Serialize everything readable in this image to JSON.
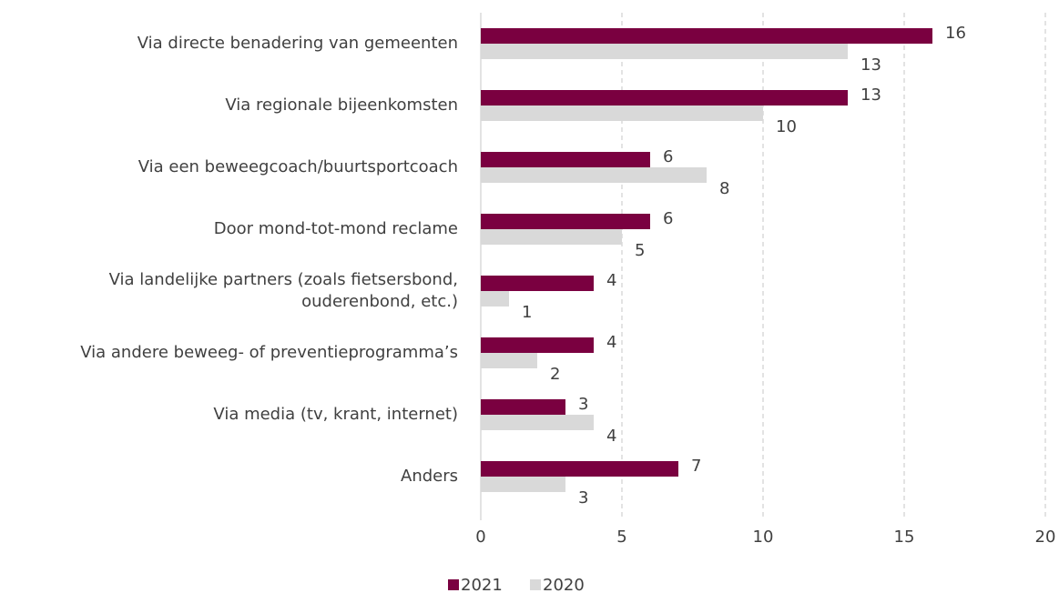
{
  "chart_data": {
    "type": "hbar",
    "categories": [
      "Via directe benadering van gemeenten",
      "Via regionale bijeenkomsten",
      "Via een beweegcoach/buurtsportcoach",
      "Door mond-tot-mond reclame",
      "Via landelijke partners (zoals fietsersbond,\nouderenbond, etc.)",
      "Via andere beweeg- of preventieprogramma’s",
      "Via media (tv, krant, internet)",
      "Anders"
    ],
    "series": [
      {
        "name": "2021",
        "color": "#7a0040",
        "values": [
          16,
          13,
          6,
          6,
          4,
          4,
          3,
          7
        ]
      },
      {
        "name": "2020",
        "color": "#d9d9d9",
        "values": [
          13,
          10,
          8,
          5,
          1,
          2,
          4,
          3
        ]
      }
    ],
    "xlim": [
      0,
      20
    ],
    "xticks": [
      0,
      5,
      10,
      15,
      20
    ],
    "grid": true,
    "legend": "bottom"
  }
}
